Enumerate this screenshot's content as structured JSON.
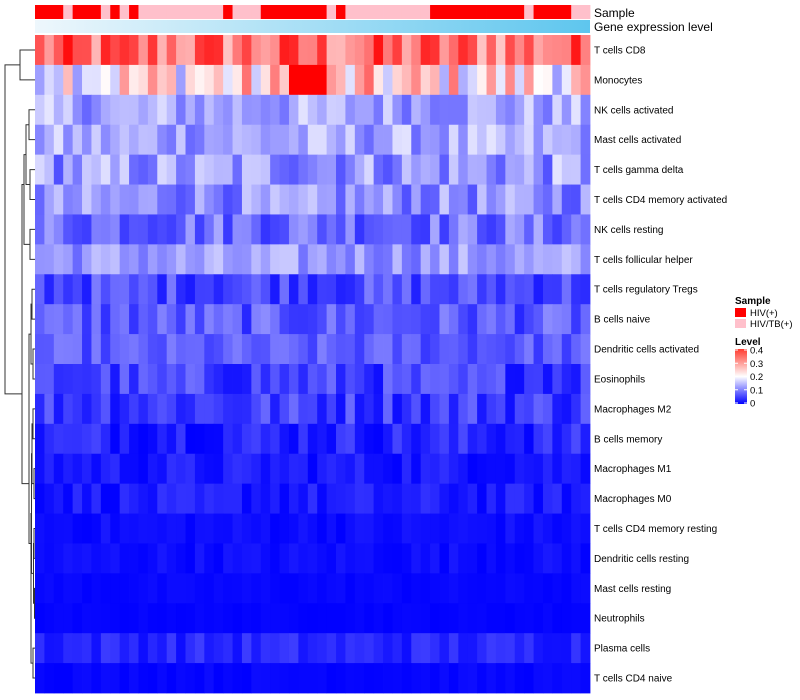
{
  "chart_data": {
    "type": "heatmap",
    "title": "",
    "annotation_tracks": [
      {
        "label": "Sample",
        "values": [
          "HIV(+)",
          "HIV(+)",
          "HIV(+)",
          "HIV/TB(+)",
          "HIV(+)",
          "HIV(+)",
          "HIV(+)",
          "HIV/TB(+)",
          "HIV(+)",
          "HIV/TB(+)",
          "HIV(+)",
          "HIV/TB(+)",
          "HIV/TB(+)",
          "HIV/TB(+)",
          "HIV/TB(+)",
          "HIV/TB(+)",
          "HIV/TB(+)",
          "HIV/TB(+)",
          "HIV/TB(+)",
          "HIV/TB(+)",
          "HIV(+)",
          "HIV/TB(+)",
          "HIV/TB(+)",
          "HIV/TB(+)",
          "HIV(+)",
          "HIV(+)",
          "HIV(+)",
          "HIV(+)",
          "HIV(+)",
          "HIV(+)",
          "HIV(+)",
          "HIV/TB(+)",
          "HIV(+)",
          "HIV/TB(+)",
          "HIV/TB(+)",
          "HIV/TB(+)",
          "HIV/TB(+)",
          "HIV/TB(+)",
          "HIV/TB(+)",
          "HIV/TB(+)",
          "HIV/TB(+)",
          "HIV/TB(+)",
          "HIV(+)",
          "HIV(+)",
          "HIV(+)",
          "HIV(+)",
          "HIV(+)",
          "HIV(+)",
          "HIV(+)",
          "HIV(+)",
          "HIV(+)",
          "HIV(+)",
          "HIV/TB(+)",
          "HIV(+)",
          "HIV(+)",
          "HIV(+)",
          "HIV(+)",
          "HIV/TB(+)",
          "HIV/TB(+)"
        ]
      },
      {
        "label": "Gene expression level",
        "gradient": [
          "#eef7fc",
          "#5ec6ee"
        ]
      }
    ],
    "rows": [
      "T cells CD8",
      "Monocytes",
      "NK cells activated",
      "Mast cells activated",
      "T cells gamma delta",
      "T cells CD4 memory activated",
      "NK cells resting",
      "T cells follicular helper",
      "T cells regulatory  Tregs",
      "B cells naive",
      "Dendritic cells activated",
      "Eosinophils",
      "Macrophages M2",
      "B cells memory",
      "Macrophages M1",
      "Macrophages M0",
      "T cells CD4 memory resting",
      "Dendritic cells resting",
      "Mast cells resting",
      "Neutrophils",
      "Plasma cells",
      "T cells CD4 naive"
    ],
    "row_bases": [
      0.31,
      0.22,
      0.13,
      0.13,
      0.12,
      0.11,
      0.09,
      0.12,
      0.06,
      0.07,
      0.07,
      0.05,
      0.05,
      0.03,
      0.02,
      0.02,
      0.01,
      0.01,
      0.005,
      0.003,
      0.03,
      0.005
    ],
    "row_spread": [
      0.08,
      0.1,
      0.05,
      0.05,
      0.06,
      0.05,
      0.05,
      0.04,
      0.04,
      0.04,
      0.03,
      0.04,
      0.04,
      0.03,
      0.02,
      0.02,
      0.01,
      0.01,
      0.005,
      0.003,
      0.02,
      0.005
    ],
    "n_columns": 59,
    "color_scale": {
      "min": 0,
      "mid": 0.2,
      "max": 0.4,
      "colors": [
        "#0000ff",
        "#ffffff",
        "#ff0000"
      ]
    },
    "legend": {
      "position": "right",
      "sample_title": "Sample",
      "sample_items": [
        {
          "label": "HIV(+)",
          "color": "#ff0000"
        },
        {
          "label": "HIV/TB(+)",
          "color": "#ffc0cb"
        }
      ],
      "level_title": "Level",
      "level_ticks": [
        "0.4",
        "0.3",
        "0.2",
        "0.1",
        "0"
      ]
    }
  }
}
